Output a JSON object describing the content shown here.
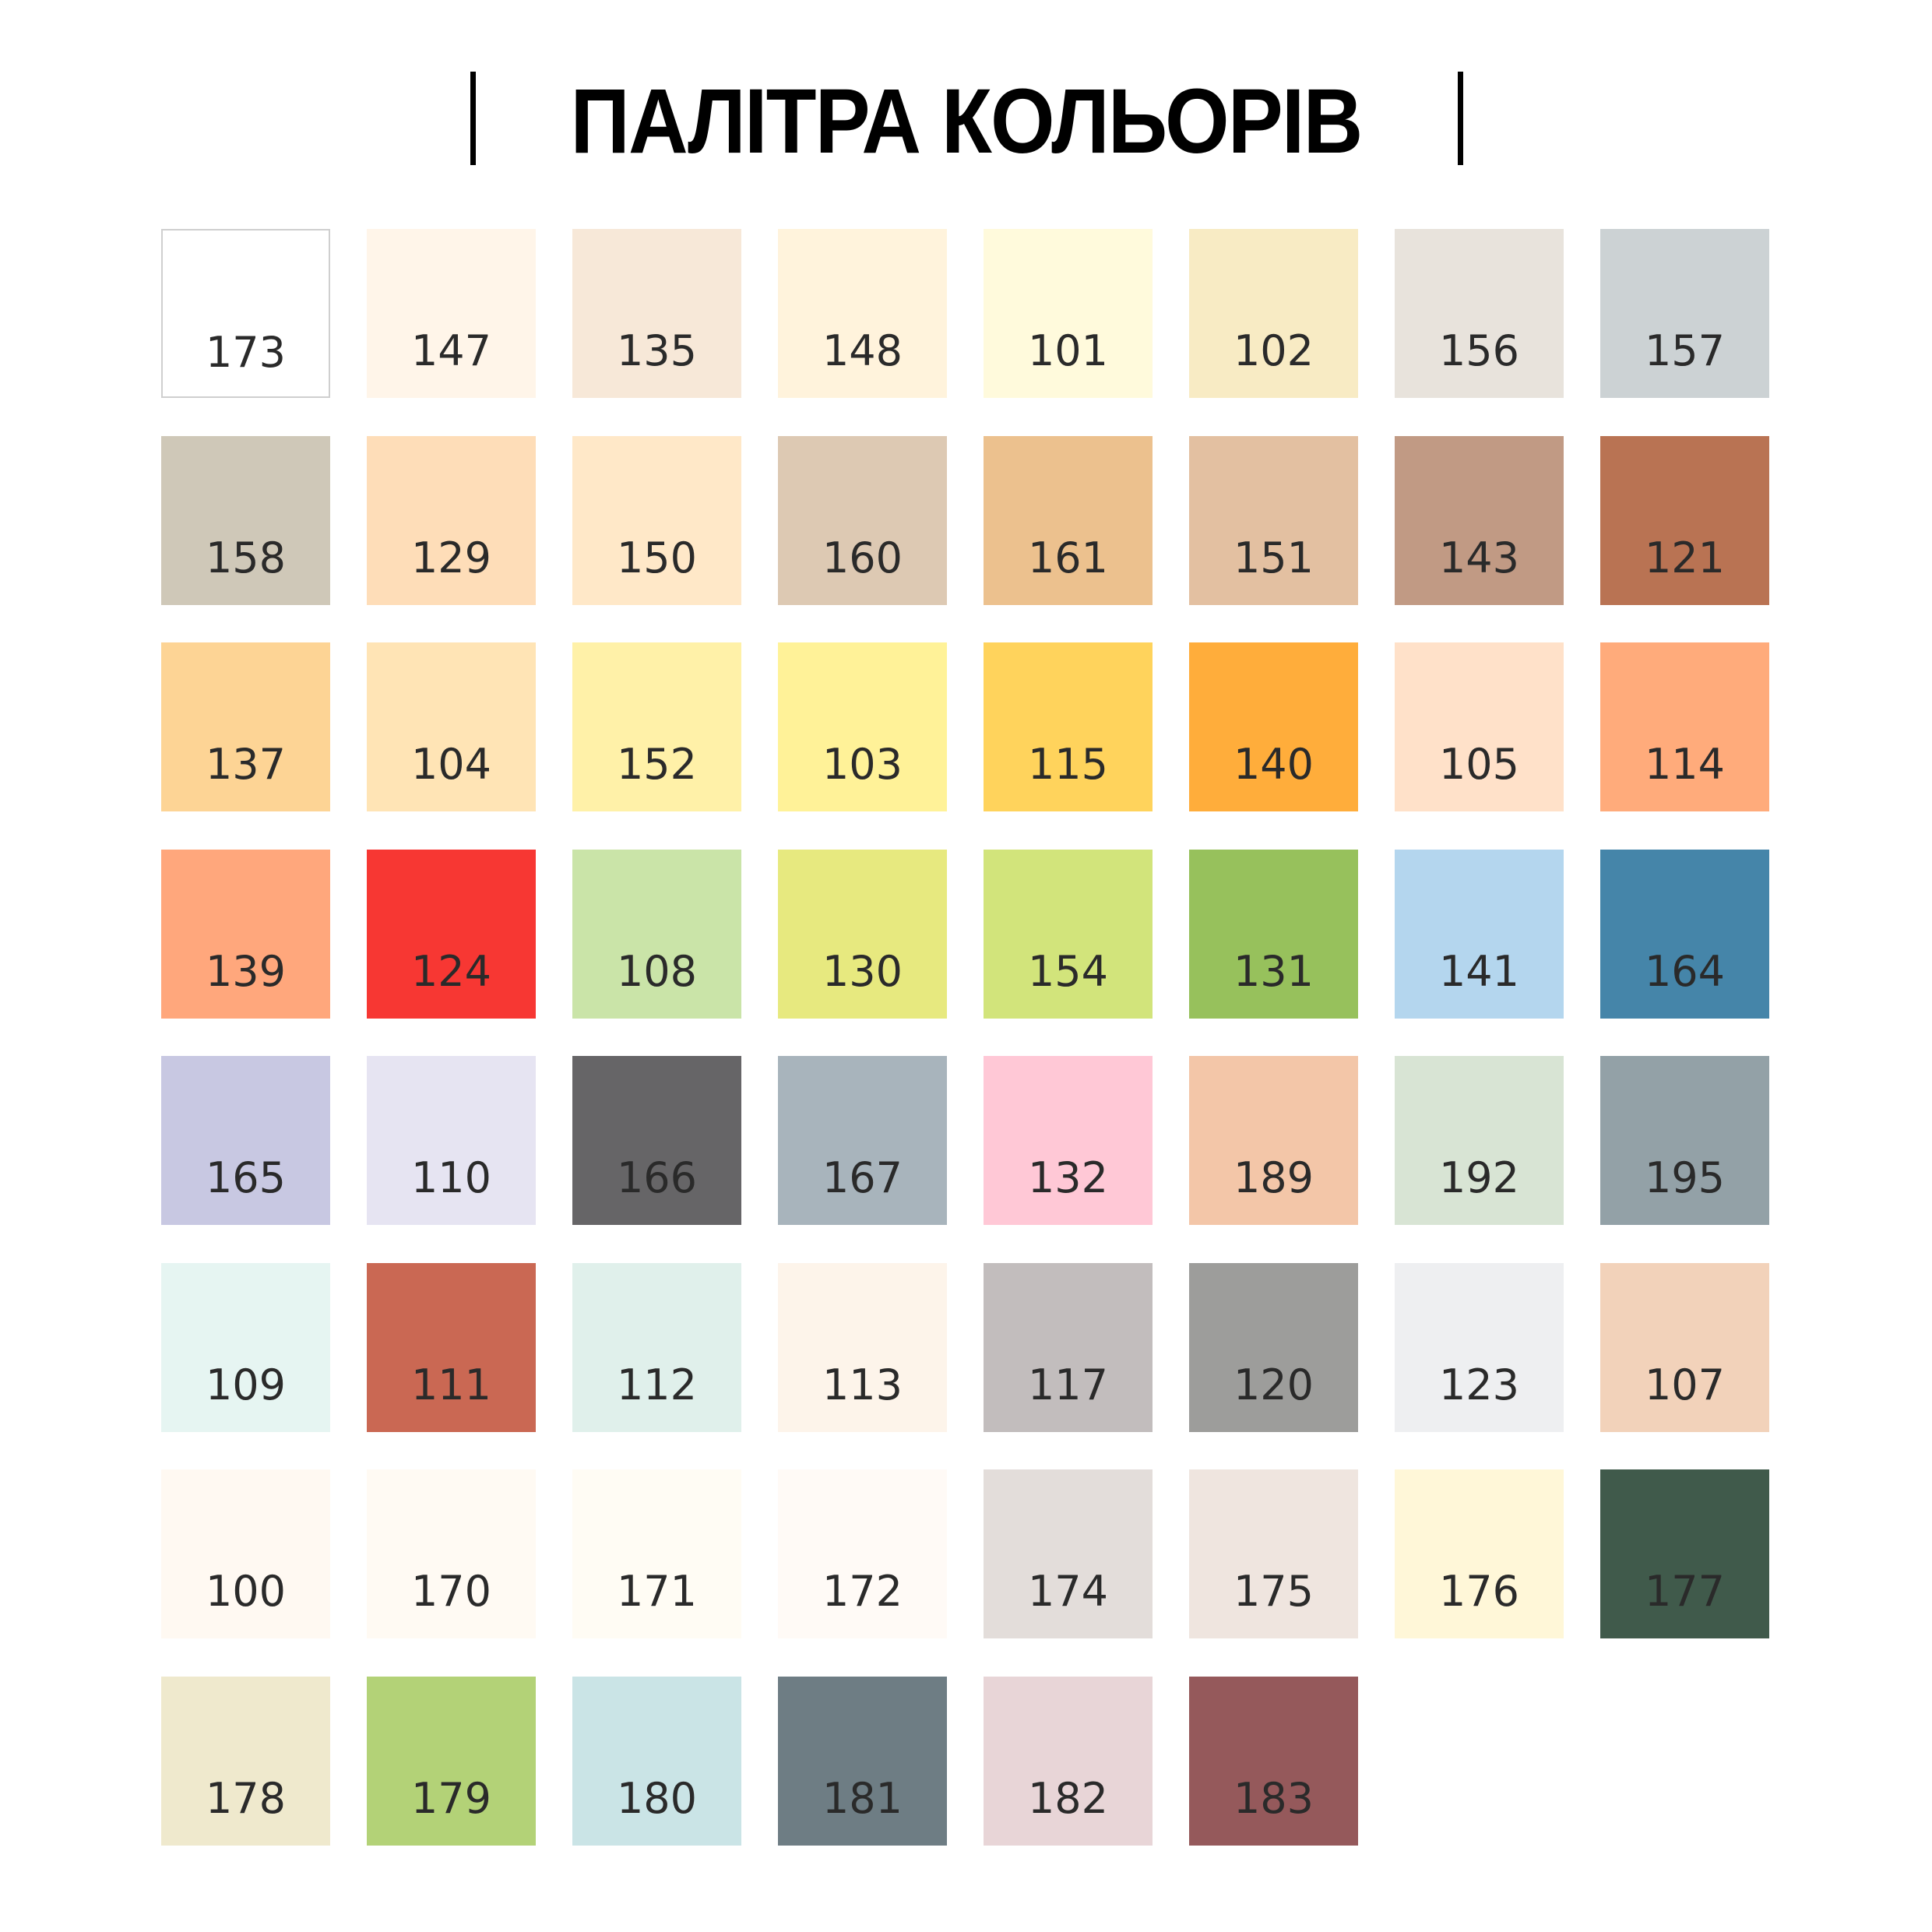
{
  "title": "ПАЛІТРА КОЛЬОРІВ",
  "swatches": [
    {
      "code": "173",
      "color": "#ffffff"
    },
    {
      "code": "147",
      "color": "#fff5e9"
    },
    {
      "code": "135",
      "color": "#f7e8d8"
    },
    {
      "code": "148",
      "color": "#fff3dc"
    },
    {
      "code": "101",
      "color": "#fffadc"
    },
    {
      "code": "102",
      "color": "#f8ebc4"
    },
    {
      "code": "156",
      "color": "#e8e3dc"
    },
    {
      "code": "157",
      "color": "#ccd2d4"
    },
    {
      "code": "158",
      "color": "#cfc8b8"
    },
    {
      "code": "129",
      "color": "#feddb8"
    },
    {
      "code": "150",
      "color": "#ffe8c8"
    },
    {
      "code": "160",
      "color": "#ddc9b3"
    },
    {
      "code": "161",
      "color": "#ecc18e"
    },
    {
      "code": "151",
      "color": "#e3c0a1"
    },
    {
      "code": "143",
      "color": "#c19a84"
    },
    {
      "code": "121",
      "color": "#b97353"
    },
    {
      "code": "137",
      "color": "#fdd495"
    },
    {
      "code": "104",
      "color": "#ffe4b5"
    },
    {
      "code": "152",
      "color": "#fff1a8"
    },
    {
      "code": "103",
      "color": "#fff298"
    },
    {
      "code": "115",
      "color": "#ffd35c"
    },
    {
      "code": "140",
      "color": "#ffad3b"
    },
    {
      "code": "105",
      "color": "#ffe1c9"
    },
    {
      "code": "114",
      "color": "#ffab7b"
    },
    {
      "code": "139",
      "color": "#ffa77c"
    },
    {
      "code": "124",
      "color": "#f73733"
    },
    {
      "code": "108",
      "color": "#cae4a8"
    },
    {
      "code": "130",
      "color": "#e7e97f"
    },
    {
      "code": "154",
      "color": "#d2e47b"
    },
    {
      "code": "131",
      "color": "#97c15c"
    },
    {
      "code": "141",
      "color": "#b4d6ee"
    },
    {
      "code": "164",
      "color": "#4585a9"
    },
    {
      "code": "165",
      "color": "#c8c8e2"
    },
    {
      "code": "110",
      "color": "#e6e4f2"
    },
    {
      "code": "166",
      "color": "#666567"
    },
    {
      "code": "167",
      "color": "#a8b4bc"
    },
    {
      "code": "132",
      "color": "#ffc8d6"
    },
    {
      "code": "189",
      "color": "#f3c6a8"
    },
    {
      "code": "192",
      "color": "#d8e4d4"
    },
    {
      "code": "195",
      "color": "#93a1a7"
    },
    {
      "code": "109",
      "color": "#e6f5f2"
    },
    {
      "code": "111",
      "color": "#ca6853"
    },
    {
      "code": "112",
      "color": "#e0f0eb"
    },
    {
      "code": "113",
      "color": "#fdf4ea"
    },
    {
      "code": "117",
      "color": "#c2bdbd"
    },
    {
      "code": "120",
      "color": "#9d9d9b"
    },
    {
      "code": "123",
      "color": "#eeeff1"
    },
    {
      "code": "107",
      "color": "#f2d2ba"
    },
    {
      "code": "100",
      "color": "#fff9f2"
    },
    {
      "code": "170",
      "color": "#fffaf3"
    },
    {
      "code": "171",
      "color": "#fffcf4"
    },
    {
      "code": "172",
      "color": "#fffaf6"
    },
    {
      "code": "174",
      "color": "#e3ddda"
    },
    {
      "code": "175",
      "color": "#efe5df"
    },
    {
      "code": "176",
      "color": "#fff7d8"
    },
    {
      "code": "177",
      "color": "#405a4b"
    },
    {
      "code": "178",
      "color": "#efe9cd"
    },
    {
      "code": "179",
      "color": "#b3d277"
    },
    {
      "code": "180",
      "color": "#cae4e6"
    },
    {
      "code": "181",
      "color": "#6e7d84"
    },
    {
      "code": "182",
      "color": "#e8d5d7"
    },
    {
      "code": "183",
      "color": "#95595b"
    }
  ]
}
